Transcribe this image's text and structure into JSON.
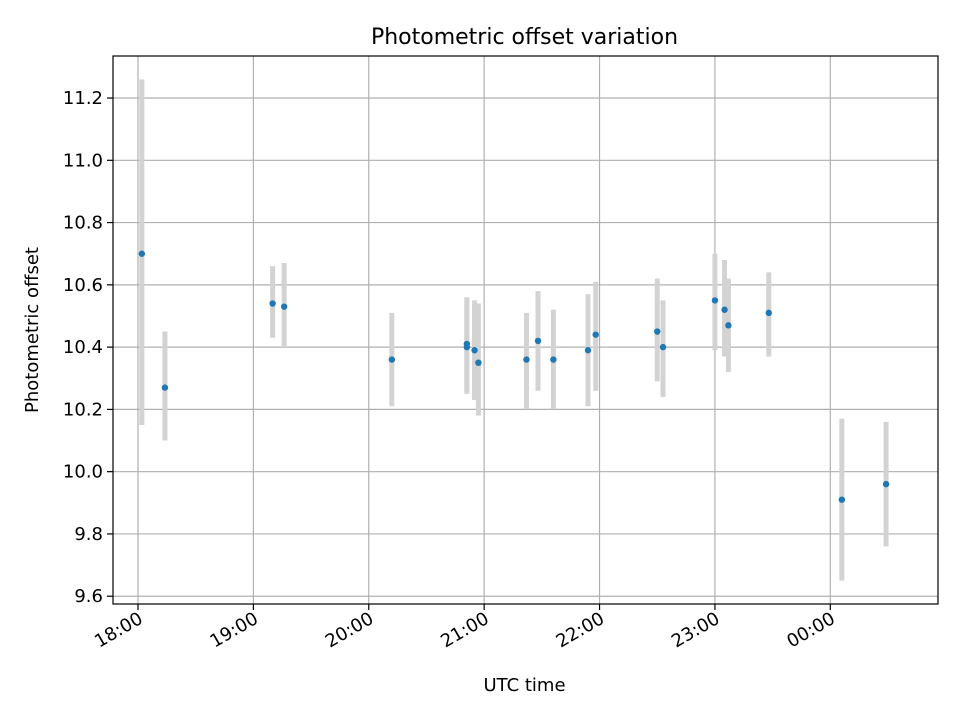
{
  "chart_data": {
    "type": "scatter",
    "title": "Photometric offset variation",
    "xlabel": "UTC time",
    "ylabel": "Photometric offset",
    "x_tick_labels": [
      "18:00",
      "19:00",
      "20:00",
      "21:00",
      "22:00",
      "23:00",
      "00:00"
    ],
    "y_tick_labels": [
      "9.6",
      "9.8",
      "10.0",
      "10.2",
      "10.4",
      "10.6",
      "10.8",
      "11.0",
      "11.2"
    ],
    "y_ticks": [
      9.6,
      9.8,
      10.0,
      10.2,
      10.4,
      10.6,
      10.8,
      11.0,
      11.2
    ],
    "xlim": [
      "17:47",
      "00:56"
    ],
    "ylim": [
      9.575,
      11.335
    ],
    "grid": true,
    "colors": {
      "marker": "#1f77b4",
      "errorbar": "#d3d3d3",
      "grid": "#b0b0b0"
    },
    "points": [
      {
        "x": "18:02",
        "y": 10.7,
        "ylow": 10.15,
        "yhigh": 11.26
      },
      {
        "x": "18:14",
        "y": 10.27,
        "ylow": 10.1,
        "yhigh": 10.45
      },
      {
        "x": "19:10",
        "y": 10.54,
        "ylow": 10.43,
        "yhigh": 10.66
      },
      {
        "x": "19:16",
        "y": 10.53,
        "ylow": 10.4,
        "yhigh": 10.67
      },
      {
        "x": "20:12",
        "y": 10.36,
        "ylow": 10.21,
        "yhigh": 10.51
      },
      {
        "x": "20:51",
        "y": 10.4,
        "ylow": 10.25,
        "yhigh": 10.55
      },
      {
        "x": "20:51",
        "y": 10.41,
        "ylow": 10.26,
        "yhigh": 10.56
      },
      {
        "x": "20:55",
        "y": 10.39,
        "ylow": 10.23,
        "yhigh": 10.55
      },
      {
        "x": "20:57",
        "y": 10.35,
        "ylow": 10.18,
        "yhigh": 10.54
      },
      {
        "x": "21:22",
        "y": 10.36,
        "ylow": 10.2,
        "yhigh": 10.51
      },
      {
        "x": "21:28",
        "y": 10.42,
        "ylow": 10.26,
        "yhigh": 10.58
      },
      {
        "x": "21:36",
        "y": 10.36,
        "ylow": 10.2,
        "yhigh": 10.52
      },
      {
        "x": "21:54",
        "y": 10.39,
        "ylow": 10.21,
        "yhigh": 10.57
      },
      {
        "x": "21:58",
        "y": 10.44,
        "ylow": 10.26,
        "yhigh": 10.61
      },
      {
        "x": "22:30",
        "y": 10.45,
        "ylow": 10.29,
        "yhigh": 10.62
      },
      {
        "x": "22:33",
        "y": 10.4,
        "ylow": 10.24,
        "yhigh": 10.55
      },
      {
        "x": "23:00",
        "y": 10.55,
        "ylow": 10.39,
        "yhigh": 10.7
      },
      {
        "x": "23:05",
        "y": 10.52,
        "ylow": 10.37,
        "yhigh": 10.68
      },
      {
        "x": "23:07",
        "y": 10.47,
        "ylow": 10.32,
        "yhigh": 10.62
      },
      {
        "x": "23:28",
        "y": 10.51,
        "ylow": 10.37,
        "yhigh": 10.64
      },
      {
        "x": "00:06",
        "y": 9.91,
        "ylow": 9.65,
        "yhigh": 10.17
      },
      {
        "x": "00:29",
        "y": 9.96,
        "ylow": 9.76,
        "yhigh": 10.16
      }
    ]
  }
}
